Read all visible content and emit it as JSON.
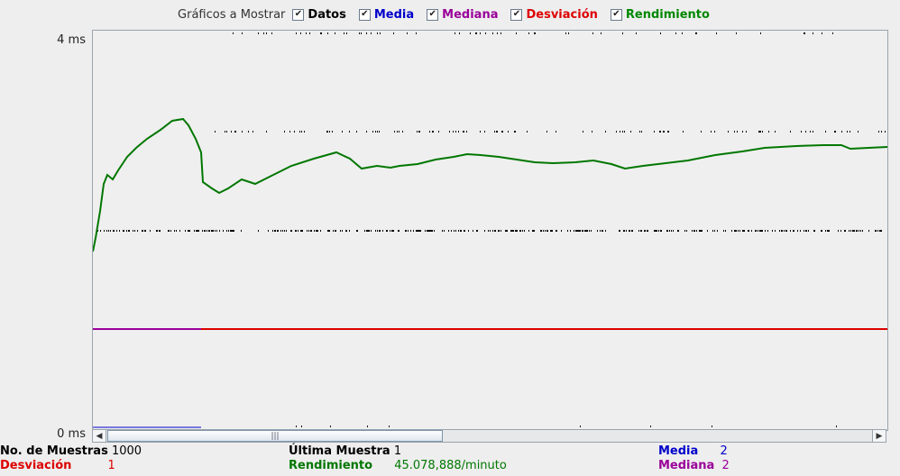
{
  "legend": {
    "title": "Gráficos a Mostrar",
    "items": [
      {
        "label": "Datos",
        "color": "#000000",
        "checked": true
      },
      {
        "label": "Media",
        "color": "#0000cc",
        "checked": true
      },
      {
        "label": "Mediana",
        "color": "#990099",
        "checked": true
      },
      {
        "label": "Desviación",
        "color": "#dd0000",
        "checked": true
      },
      {
        "label": "Rendimiento",
        "color": "#008800",
        "checked": true
      }
    ],
    "check_glyph": "✔"
  },
  "axis": {
    "y_top": "4 ms",
    "y_bottom": "0 ms"
  },
  "scrollbar": {
    "left_arrow": "◀",
    "right_arrow": "▶",
    "grip": "|||"
  },
  "stats": {
    "samples_label": "No. de Muestras",
    "samples_value": "1000",
    "last_label": "Última Muestra",
    "last_value": "1",
    "mean_label": "Media",
    "mean_value": "2",
    "dev_label": "Desviación",
    "dev_value": "1",
    "throughput_label": "Rendimiento",
    "throughput_value": "45.078,888/minuto",
    "median_label": "Mediana",
    "median_value": "2"
  },
  "colors": {
    "data": "#000000",
    "mean": "#0000cc",
    "median": "#990099",
    "deviation": "#dd0000",
    "throughput": "#007700"
  }
}
